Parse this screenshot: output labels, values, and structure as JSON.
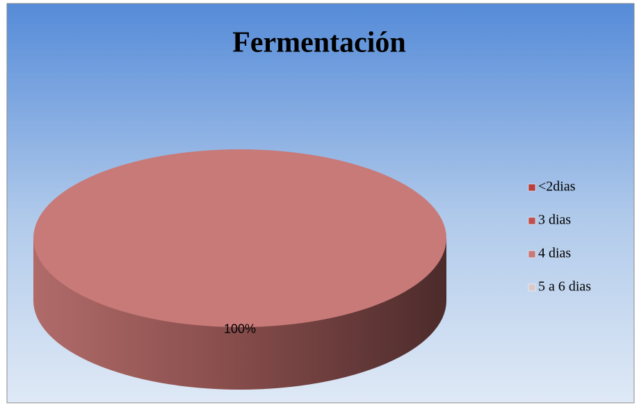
{
  "chart_data": {
    "type": "pie",
    "title": "Fermentación",
    "categories": [
      "<2dias",
      "3 dias",
      "4 dias",
      "5 a 6 dias"
    ],
    "values": [
      0,
      0,
      100,
      0
    ],
    "value_labels": [
      null,
      null,
      "100%",
      null
    ],
    "colors": [
      "#b8413e",
      "#c0504d",
      "#c77a78",
      "#d9c9c9"
    ],
    "legend": "right"
  }
}
